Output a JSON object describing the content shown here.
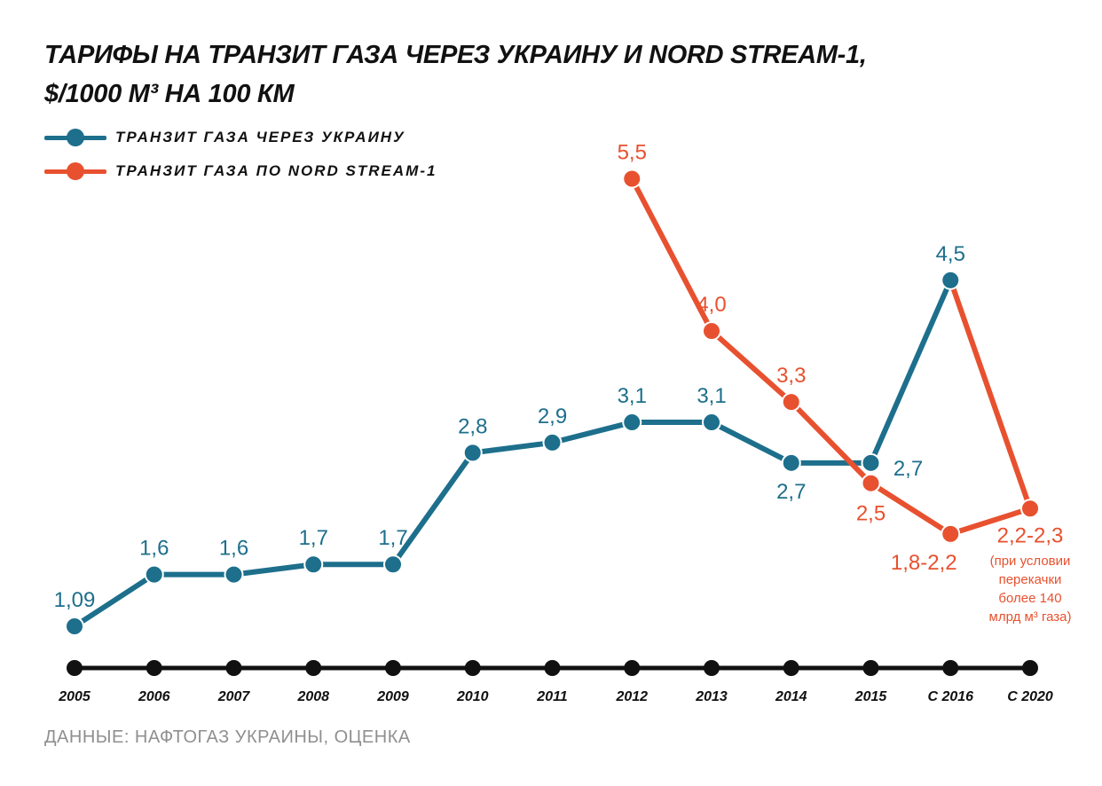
{
  "colors": {
    "ukraine": "#1d6f8c",
    "nord": "#e8512f",
    "axis": "#111111",
    "source": "#8f8f8f"
  },
  "chart_data": {
    "type": "line",
    "title": "ТАРИФЫ НА ТРАНЗИТ ГАЗА ЧЕРЕЗ УКРАИНУ И NORD STREAM-1,",
    "subtitle": "$/1000 М³ НА 100 КМ",
    "categories": [
      "2005",
      "2006",
      "2007",
      "2008",
      "2009",
      "2010",
      "2011",
      "2012",
      "2013",
      "2014",
      "2015",
      "С 2016",
      "С 2020"
    ],
    "ylim": [
      0,
      6
    ],
    "grid": false,
    "legend_position": "top-left",
    "series": [
      {
        "name": "ТРАНЗИТ ГАЗА ЧЕРЕЗ УКРАИНУ",
        "color": "#1d6f8c",
        "values": [
          1.09,
          1.6,
          1.6,
          1.7,
          1.7,
          2.8,
          2.9,
          3.1,
          3.1,
          2.7,
          2.7,
          4.5,
          null
        ],
        "labels": [
          "1,09",
          "1,6",
          "1,6",
          "1,7",
          "1,7",
          "2,8",
          "2,9",
          "3,1",
          "3,1",
          "2,7",
          "2,7",
          "4,5",
          null
        ]
      },
      {
        "name": "ТРАНЗИТ ГАЗА ПО NORD STREAM-1",
        "color": "#e8512f",
        "values": [
          null,
          null,
          null,
          null,
          null,
          null,
          null,
          5.5,
          4.0,
          3.3,
          2.5,
          2.0,
          2.25
        ],
        "labels": [
          null,
          null,
          null,
          null,
          null,
          null,
          null,
          "5,5",
          "4,0",
          "3,3",
          "2,5",
          "1,8-2,2",
          "2,2-2,3"
        ]
      }
    ],
    "extra_segments": [
      {
        "series": 1,
        "from": {
          "category": "С 2016",
          "value": 4.5
        },
        "to": {
          "category": "С 2020",
          "value": 2.25
        }
      }
    ],
    "annotations": [
      {
        "category": "С 2020",
        "lines": [
          "(при условии",
          "перекачки",
          "более 140",
          "млрд м³ газа)"
        ]
      }
    ],
    "source": "ДАННЫЕ: НАФТОГАЗ УКРАИНЫ, ОЦЕНКА"
  }
}
